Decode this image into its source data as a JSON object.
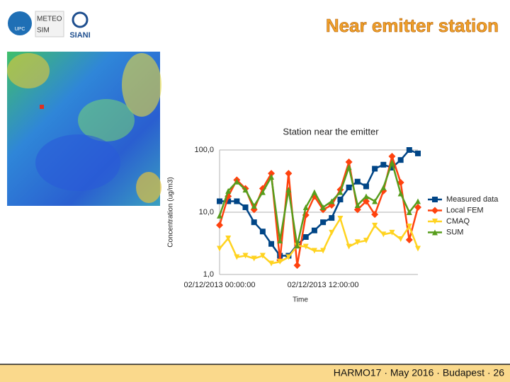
{
  "slide": {
    "title": "Near emitter station",
    "footer": "HARMO17 · May 2016 · Budapest · 26",
    "logos": [
      "UPC",
      "METEO",
      "SIM",
      "SIANI"
    ]
  },
  "chart_data": {
    "type": "line",
    "title": "Station near the emitter",
    "x_label": "Time",
    "y_label": "Concentration (ug/m3)",
    "yscale": "log",
    "grid": true,
    "legend": "right",
    "ylim": [
      1,
      100
    ],
    "yticks": [
      {
        "value": 1,
        "label": "1,0"
      },
      {
        "value": 10,
        "label": "10,0"
      },
      {
        "value": 100,
        "label": "100,0"
      }
    ],
    "categories": [
      "02/12/2013 00:00:00",
      null,
      null,
      null,
      null,
      null,
      null,
      null,
      null,
      null,
      null,
      null,
      "02/12/2013 12:00:00",
      null,
      null,
      null,
      null,
      null,
      null,
      null,
      null,
      null,
      null,
      null
    ],
    "series": [
      {
        "name": "Measured data",
        "color": "#004586",
        "marker": "square",
        "values": [
          15,
          15,
          15,
          12,
          6.9,
          4.9,
          3.1,
          2.0,
          2.0,
          3.0,
          4.0,
          5.1,
          6.9,
          8.1,
          16,
          25,
          31,
          26,
          50,
          58,
          52,
          69,
          100,
          88
        ]
      },
      {
        "name": "Local FEM",
        "color": "#ff420e",
        "marker": "diamond",
        "values": [
          6.2,
          18,
          33,
          24,
          11,
          24,
          42,
          1.7,
          42,
          1.4,
          9,
          18,
          11,
          13,
          23,
          64,
          11,
          15,
          9.2,
          22,
          79,
          30,
          3.6,
          12
        ]
      },
      {
        "name": "CMAQ",
        "color": "#ffd320",
        "marker": "triangle-down",
        "values": [
          2.6,
          3.8,
          1.9,
          2.0,
          1.8,
          2.0,
          1.5,
          1.6,
          1.9,
          2.9,
          2.8,
          2.4,
          2.4,
          4.7,
          7.9,
          2.8,
          3.3,
          3.5,
          6.1,
          4.4,
          4.7,
          3.7,
          5.9,
          2.6
        ]
      },
      {
        "name": "SUM",
        "color": "#579d1c",
        "marker": "triangle-up",
        "values": [
          8.8,
          22,
          31,
          23,
          12.6,
          21,
          37,
          3.5,
          23,
          2.9,
          12,
          21,
          12,
          15,
          21,
          53,
          13,
          18,
          15,
          25,
          63,
          20,
          10,
          15
        ]
      }
    ]
  }
}
